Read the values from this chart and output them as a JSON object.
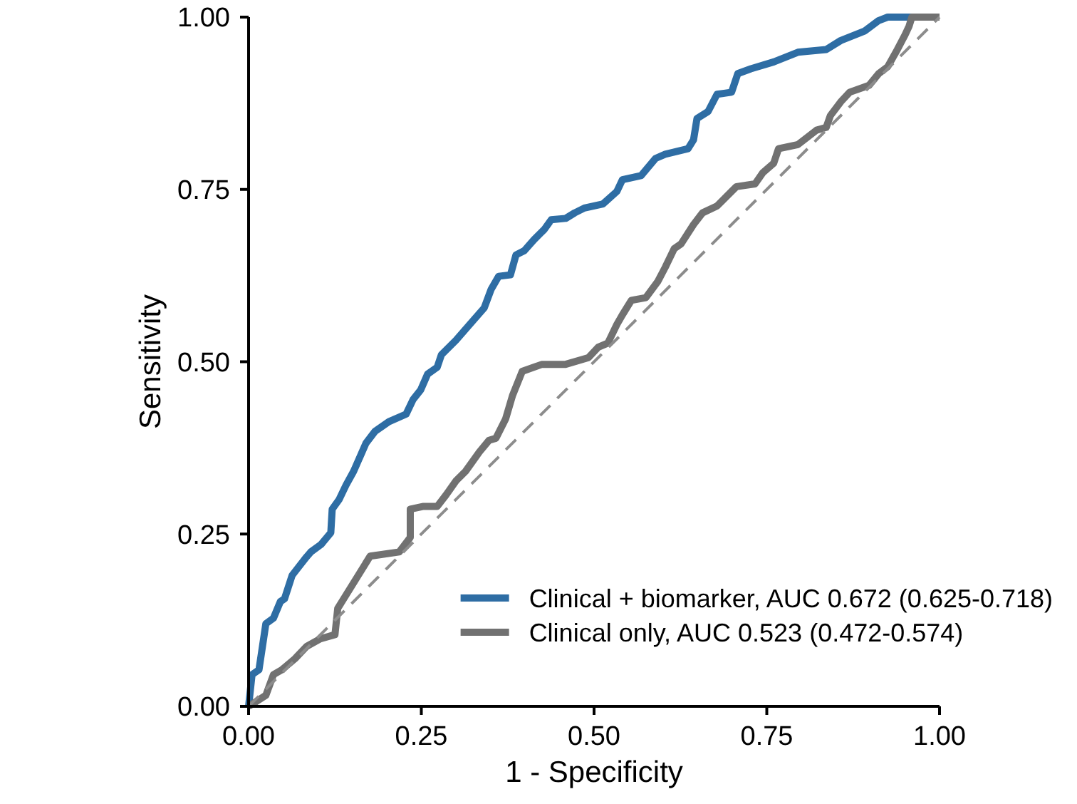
{
  "chart_data": {
    "type": "line",
    "xlabel": "1 - Specificity",
    "ylabel": "Sensitivity",
    "xlim": [
      0,
      1
    ],
    "ylim": [
      0,
      1
    ],
    "xticks": [
      {
        "value": 0,
        "label": "0.00"
      },
      {
        "value": 0.25,
        "label": "0.25"
      },
      {
        "value": 0.5,
        "label": "0.50"
      },
      {
        "value": 0.75,
        "label": "0.75"
      },
      {
        "value": 1,
        "label": "1.00"
      }
    ],
    "yticks": [
      {
        "value": 0,
        "label": "0.00"
      },
      {
        "value": 0.25,
        "label": "0.25"
      },
      {
        "value": 0.5,
        "label": "0.50"
      },
      {
        "value": 0.75,
        "label": "0.75"
      },
      {
        "value": 1,
        "label": "1.00"
      }
    ],
    "legend": "bottom right",
    "series": [
      {
        "name": "Clinical + biomarker, AUC 0.672 (0.625-0.718)",
        "color": "#2e6da4",
        "x": [
          0,
          0.005,
          0.015,
          0.025,
          0.036,
          0.046,
          0.052,
          0.063,
          0.073,
          0.084,
          0.09,
          0.105,
          0.119,
          0.121,
          0.131,
          0.141,
          0.152,
          0.17,
          0.183,
          0.203,
          0.228,
          0.238,
          0.249,
          0.259,
          0.273,
          0.279,
          0.3,
          0.32,
          0.341,
          0.351,
          0.362,
          0.379,
          0.387,
          0.399,
          0.413,
          0.428,
          0.438,
          0.459,
          0.472,
          0.486,
          0.513,
          0.533,
          0.541,
          0.568,
          0.589,
          0.603,
          0.636,
          0.644,
          0.649,
          0.665,
          0.678,
          0.699,
          0.708,
          0.727,
          0.76,
          0.795,
          0.836,
          0.857,
          0.892,
          0.912,
          0.925,
          1
        ],
        "values": [
          0,
          0.046,
          0.053,
          0.12,
          0.128,
          0.152,
          0.156,
          0.19,
          0.203,
          0.217,
          0.224,
          0.235,
          0.252,
          0.286,
          0.3,
          0.321,
          0.341,
          0.382,
          0.399,
          0.413,
          0.424,
          0.445,
          0.459,
          0.482,
          0.492,
          0.51,
          0.531,
          0.554,
          0.578,
          0.605,
          0.624,
          0.626,
          0.655,
          0.661,
          0.677,
          0.692,
          0.706,
          0.708,
          0.716,
          0.723,
          0.729,
          0.747,
          0.764,
          0.77,
          0.795,
          0.801,
          0.809,
          0.822,
          0.853,
          0.863,
          0.888,
          0.891,
          0.918,
          0.925,
          0.935,
          0.949,
          0.953,
          0.966,
          0.98,
          0.995,
          1,
          1
        ]
      },
      {
        "name": "Clinical only, AUC 0.523 (0.472-0.574)",
        "color": "#717171",
        "x": [
          0,
          0.011,
          0.025,
          0.036,
          0.048,
          0.067,
          0.084,
          0.104,
          0.125,
          0.129,
          0.176,
          0.218,
          0.234,
          0.234,
          0.252,
          0.273,
          0.286,
          0.3,
          0.314,
          0.334,
          0.348,
          0.358,
          0.372,
          0.382,
          0.396,
          0.424,
          0.458,
          0.492,
          0.506,
          0.52,
          0.533,
          0.541,
          0.554,
          0.575,
          0.592,
          0.603,
          0.616,
          0.626,
          0.644,
          0.657,
          0.678,
          0.699,
          0.706,
          0.733,
          0.744,
          0.76,
          0.767,
          0.795,
          0.822,
          0.836,
          0.842,
          0.857,
          0.87,
          0.898,
          0.912,
          0.925,
          0.939,
          0.95,
          0.956,
          0.96,
          1
        ],
        "values": [
          0,
          0.007,
          0.016,
          0.046,
          0.053,
          0.069,
          0.087,
          0.098,
          0.104,
          0.142,
          0.218,
          0.224,
          0.245,
          0.286,
          0.29,
          0.29,
          0.307,
          0.327,
          0.341,
          0.369,
          0.386,
          0.389,
          0.417,
          0.451,
          0.486,
          0.496,
          0.496,
          0.506,
          0.521,
          0.527,
          0.554,
          0.568,
          0.589,
          0.593,
          0.616,
          0.637,
          0.664,
          0.671,
          0.699,
          0.716,
          0.726,
          0.747,
          0.754,
          0.758,
          0.774,
          0.788,
          0.809,
          0.815,
          0.836,
          0.84,
          0.857,
          0.877,
          0.891,
          0.901,
          0.918,
          0.928,
          0.953,
          0.974,
          0.987,
          1,
          1
        ]
      },
      {
        "color": "#8c8c8c",
        "line_style": "dashed",
        "x": [
          0,
          1
        ],
        "values": [
          0,
          1
        ]
      }
    ]
  }
}
